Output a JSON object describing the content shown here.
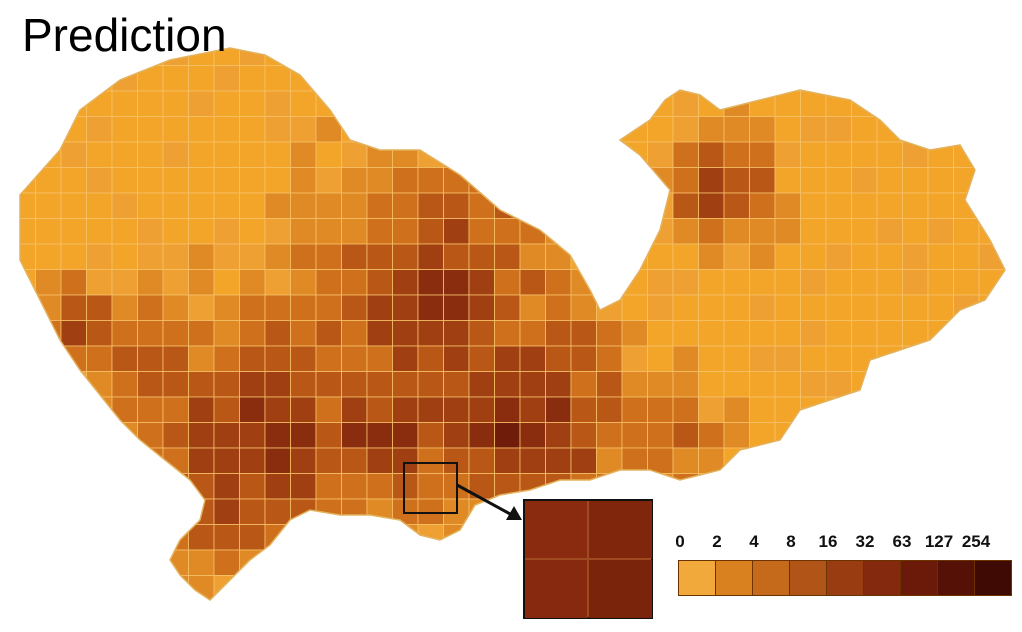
{
  "title": "Prediction",
  "legend": {
    "labels": [
      "0",
      "2",
      "4",
      "8",
      "16",
      "32",
      "63",
      "127",
      "254"
    ],
    "colors": [
      "#f2a93b",
      "#d9801f",
      "#c46a1a",
      "#b15417",
      "#9a3c12",
      "#84280e",
      "#6b1a0a",
      "#551106",
      "#3f0a04"
    ]
  },
  "palette": {
    "base": "#f3a52a",
    "light": "#f0b247",
    "grid": "#f7c168",
    "levels": [
      "#eea032",
      "#e08a25",
      "#cf701c",
      "#b95717",
      "#9f3f12",
      "#8a2d0f",
      "#6f1c0a"
    ]
  },
  "inset_colors": [
    "#8a2a0f",
    "#7f260d",
    "#86290f",
    "#7a240c"
  ]
}
